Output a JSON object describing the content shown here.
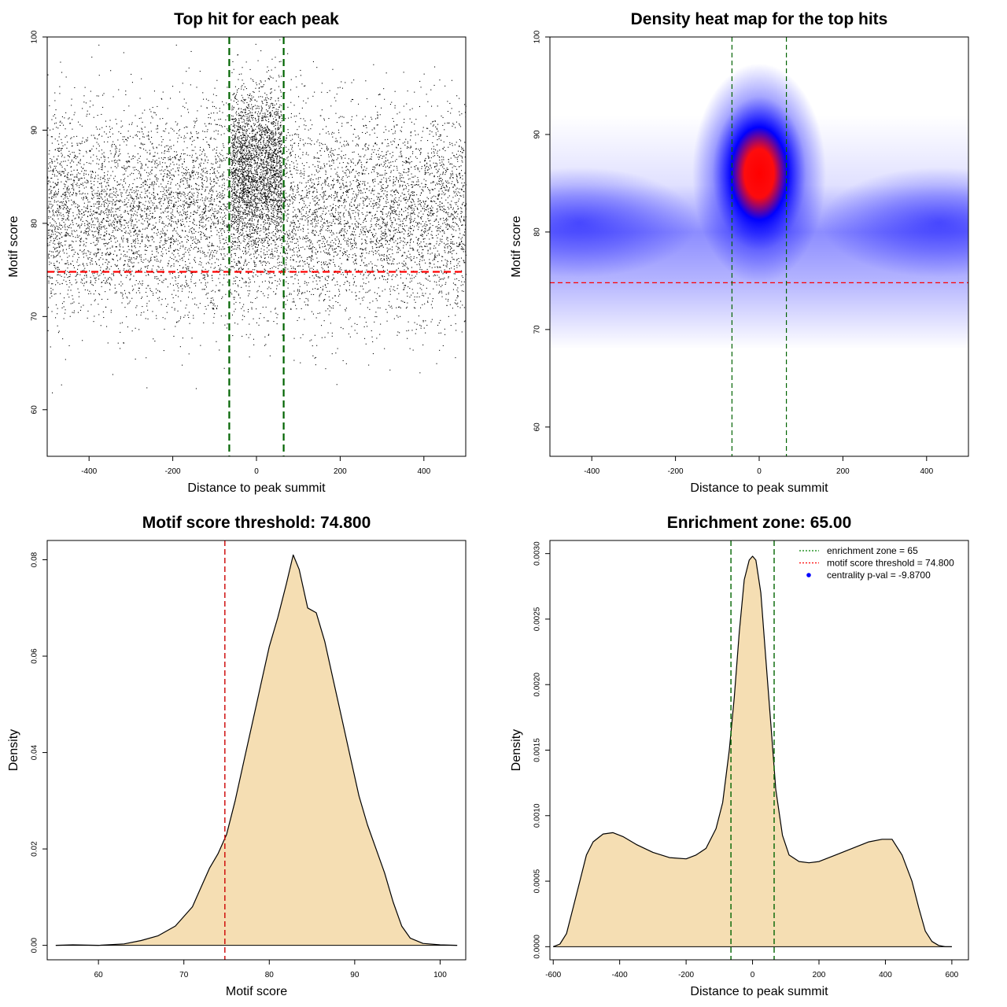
{
  "chart_data": [
    {
      "type": "scatter",
      "title": "Top hit for each peak",
      "xlabel": "Distance to peak summit",
      "ylabel": "Motif score",
      "xlim": [
        -500,
        500
      ],
      "ylim": [
        55,
        100
      ],
      "xticks": [
        -400,
        -200,
        0,
        200,
        400
      ],
      "yticks": [
        60,
        70,
        80,
        90,
        100
      ],
      "hlines": [
        {
          "value": 74.8,
          "color": "#ff0000",
          "style": "dashed"
        }
      ],
      "vlines": [
        {
          "value": -65,
          "color": "#006400",
          "style": "dashed"
        },
        {
          "value": 65,
          "color": "#006400",
          "style": "dashed"
        }
      ],
      "point_groups": [
        {
          "name": "background",
          "x_range": [
            -500,
            500
          ],
          "y_mean": 81,
          "y_sd": 5.5,
          "count": 9000
        },
        {
          "name": "central",
          "x_range": [
            -60,
            60
          ],
          "y_mean": 86.5,
          "y_sd": 4,
          "count": 2200
        }
      ],
      "grid": false
    },
    {
      "type": "heatmap",
      "title": "Density heat map for the top hits",
      "xlabel": "Distance to peak summit",
      "ylabel": "Motif score",
      "xlim": [
        -500,
        500
      ],
      "ylim": [
        57,
        100
      ],
      "xticks": [
        -400,
        -200,
        0,
        200,
        400
      ],
      "yticks": [
        60,
        70,
        80,
        90,
        100
      ],
      "density_peaks": [
        {
          "x": 0,
          "y": 86,
          "weight": 1.0
        },
        {
          "x": -430,
          "y": 81,
          "weight": 0.4
        },
        {
          "x": 430,
          "y": 81,
          "weight": 0.4
        }
      ],
      "colors": {
        "low": "#ffffff",
        "mid": "#0000ff",
        "high": "#ff0000"
      },
      "hlines": [
        {
          "value": 74.8,
          "color": "#ff0000",
          "style": "dashed"
        }
      ],
      "vlines": [
        {
          "value": -65,
          "color": "#006400",
          "style": "dashed"
        },
        {
          "value": 65,
          "color": "#006400",
          "style": "dashed"
        }
      ]
    },
    {
      "type": "area",
      "title": "Motif score threshold: 74.800",
      "xlabel": "Motif score",
      "ylabel": "Density",
      "xlim": [
        54,
        103
      ],
      "ylim": [
        -0.003,
        0.084
      ],
      "xticks": [
        60,
        70,
        80,
        90,
        100
      ],
      "yticks": [
        0.0,
        0.02,
        0.04,
        0.06,
        0.08
      ],
      "ytick_labels": [
        "0.00",
        "0.02",
        "0.04",
        "0.06",
        "0.08"
      ],
      "x": [
        55,
        57,
        60,
        63,
        65,
        67,
        69,
        71,
        72,
        73,
        74,
        75,
        76,
        77,
        78,
        79,
        80,
        81,
        82,
        82.8,
        83.5,
        84.5,
        85.5,
        86.5,
        87.5,
        88.5,
        89.5,
        90.5,
        91.5,
        92.5,
        93.5,
        94.5,
        95.5,
        96.5,
        98,
        100,
        102
      ],
      "values": [
        0.0,
        0.0001,
        0.0,
        0.0003,
        0.001,
        0.002,
        0.004,
        0.008,
        0.012,
        0.016,
        0.019,
        0.023,
        0.03,
        0.038,
        0.046,
        0.054,
        0.062,
        0.068,
        0.075,
        0.081,
        0.078,
        0.07,
        0.069,
        0.063,
        0.055,
        0.047,
        0.039,
        0.031,
        0.025,
        0.02,
        0.015,
        0.009,
        0.004,
        0.0015,
        0.0004,
        0.0001,
        0.0
      ],
      "fill": "#f5deb3",
      "vlines": [
        {
          "value": 74.8,
          "color": "#cc0000",
          "style": "dashed"
        }
      ]
    },
    {
      "type": "area",
      "title": "Enrichment zone: 65.00",
      "xlabel": "Distance to peak summit",
      "ylabel": "Density",
      "xlim": [
        -610,
        650
      ],
      "ylim": [
        -0.0001,
        0.0031
      ],
      "xticks": [
        -600,
        -400,
        -200,
        0,
        200,
        400,
        600
      ],
      "yticks": [
        0.0,
        0.0005,
        0.001,
        0.0015,
        0.002,
        0.0025,
        0.003
      ],
      "ytick_labels": [
        "0.0000",
        "0.0005",
        "0.0010",
        "0.0015",
        "0.0020",
        "0.0025",
        "0.0030"
      ],
      "x": [
        -600,
        -580,
        -560,
        -540,
        -520,
        -500,
        -480,
        -450,
        -420,
        -390,
        -350,
        -300,
        -250,
        -200,
        -170,
        -140,
        -110,
        -90,
        -70,
        -55,
        -40,
        -25,
        -10,
        0,
        10,
        25,
        40,
        55,
        70,
        90,
        110,
        140,
        170,
        200,
        250,
        300,
        350,
        390,
        420,
        450,
        480,
        500,
        520,
        540,
        560,
        580,
        600
      ],
      "values": [
        0.0,
        2e-05,
        0.0001,
        0.0003,
        0.0005,
        0.0007,
        0.0008,
        0.00086,
        0.00087,
        0.00084,
        0.00078,
        0.00072,
        0.00068,
        0.00067,
        0.0007,
        0.00075,
        0.0009,
        0.0011,
        0.0015,
        0.0019,
        0.0024,
        0.0028,
        0.00295,
        0.00298,
        0.00295,
        0.0027,
        0.0022,
        0.0017,
        0.0012,
        0.00085,
        0.0007,
        0.00065,
        0.00064,
        0.00065,
        0.0007,
        0.00075,
        0.0008,
        0.00082,
        0.00082,
        0.0007,
        0.0005,
        0.0003,
        0.00012,
        4e-05,
        1e-05,
        0.0,
        0.0
      ],
      "fill": "#f5deb3",
      "vlines": [
        {
          "value": -65,
          "color": "#006400",
          "style": "dashed"
        },
        {
          "value": 65,
          "color": "#006400",
          "style": "dashed"
        }
      ],
      "legend": {
        "position": "top-right",
        "entries": [
          {
            "label": "enrichment zone = 65",
            "color": "#008000",
            "marker": "dotted-line"
          },
          {
            "label": "motif score threshold = 74.800",
            "color": "#ff0000",
            "marker": "dotted-line"
          },
          {
            "label": "centrality p-val = -9.8700",
            "color": "#0000ff",
            "marker": "point"
          }
        ]
      }
    }
  ]
}
